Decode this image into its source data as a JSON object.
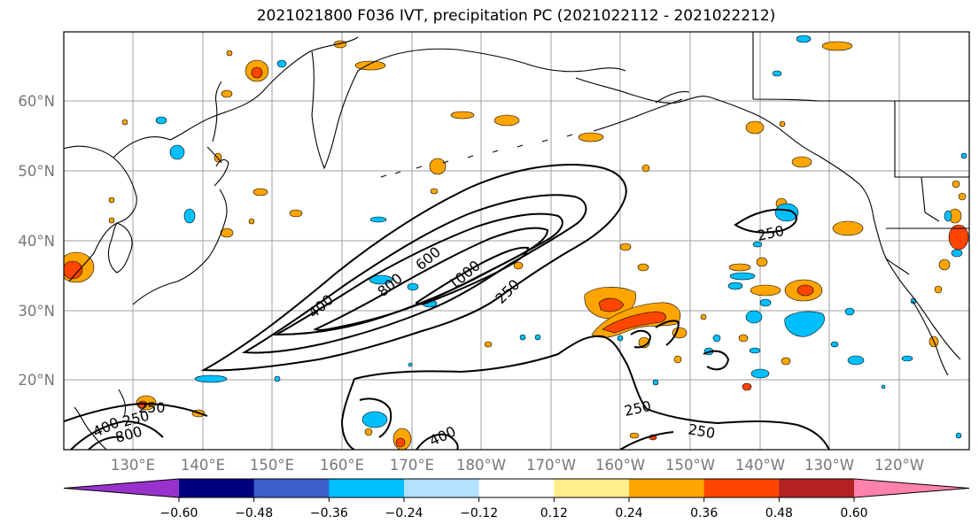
{
  "title": "2021021800 F036 IVT, precipitation PC (2021022112 - 2021022212)",
  "map": {
    "lat_labels": [
      "60°N",
      "50°N",
      "40°N",
      "30°N",
      "20°N"
    ],
    "lon_labels": [
      "130°E",
      "140°E",
      "150°E",
      "160°E",
      "170°E",
      "180°W",
      "170°W",
      "160°W",
      "150°W",
      "140°W",
      "130°W",
      "120°W"
    ],
    "ivt_contour_labels": [
      "250",
      "400",
      "600",
      "800",
      "1000",
      "250",
      "250",
      "250",
      "250",
      "400",
      "400",
      "800",
      "250"
    ],
    "colors": {
      "grid": "#9a9a9a",
      "coast": "#000000",
      "contour": "#000000",
      "axis_label": "#777777"
    }
  },
  "colorbar": {
    "colors": [
      "#9932cc",
      "#000080",
      "#3a5fcd",
      "#00bfff",
      "#b0e2ff",
      "#ffffff",
      "#ffec8b",
      "#ffa500",
      "#ff4500",
      "#b22222",
      "#ff82ab"
    ],
    "tick_labels": [
      "−0.60",
      "−0.48",
      "−0.36",
      "−0.24",
      "−0.12",
      "0.12",
      "0.24",
      "0.36",
      "0.48",
      "0.60"
    ]
  }
}
